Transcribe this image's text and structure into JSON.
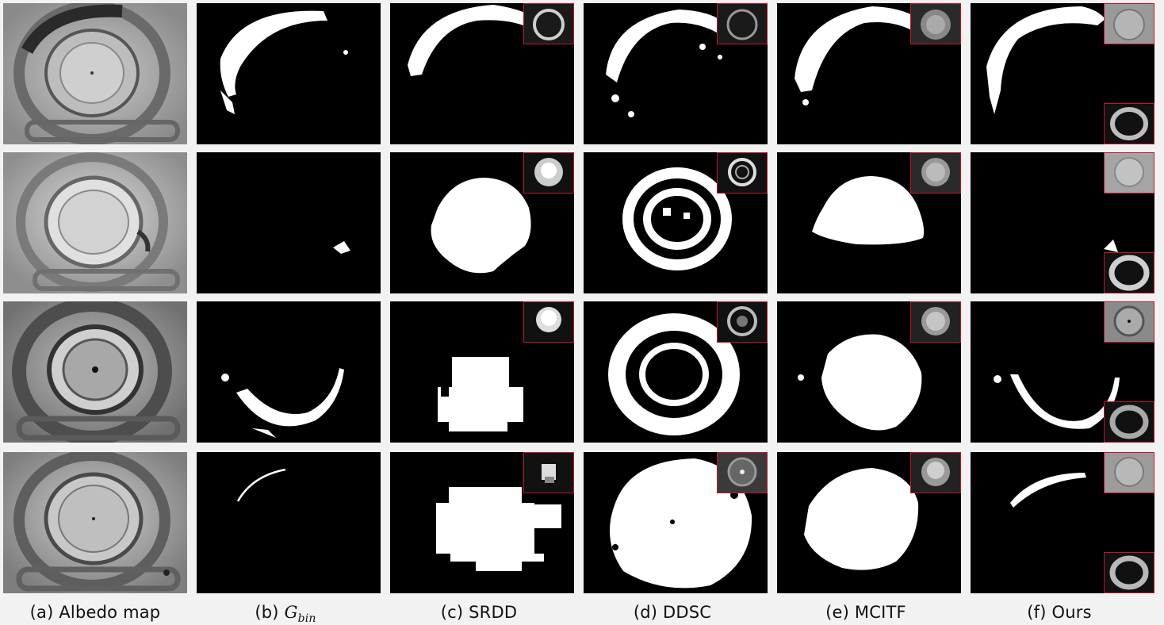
{
  "captions": {
    "a": "(a) Albedo map",
    "b_prefix": "(b)",
    "b_symbol": "G",
    "b_subscript": "bin",
    "c": "(c) SRDD",
    "d": "(d) DDSC",
    "e": "(e) MCITF",
    "f": "(f) Ours"
  },
  "colors": {
    "mask_background": "#000000",
    "mask_foreground": "#ffffff",
    "inset_border": "#c8102e",
    "page_background": "#f2f2f2"
  }
}
